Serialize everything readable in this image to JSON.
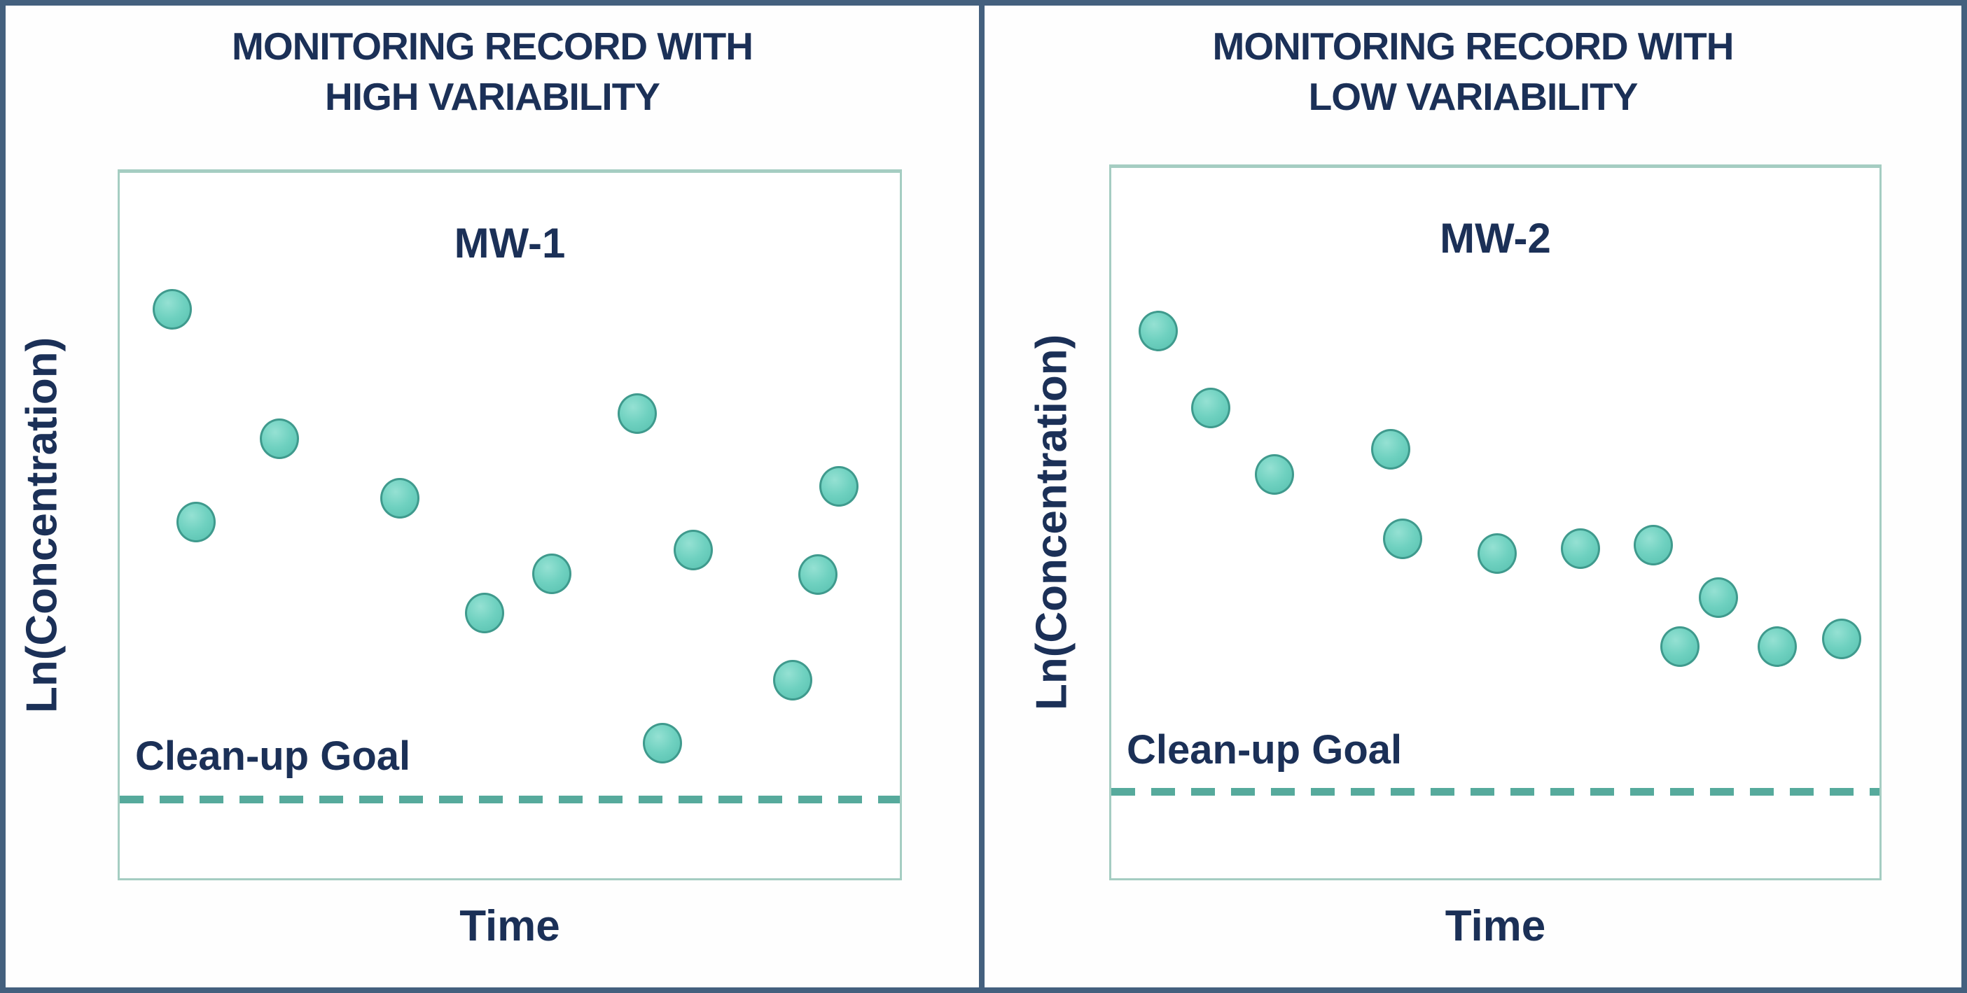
{
  "figure": {
    "colors": {
      "frame_border": "#44607e",
      "plot_box_border": "#a5cdc2",
      "point_fill": "#6fd1c0",
      "point_stroke": "#3f9a8d",
      "dashed_goal_line": "#56aa9c",
      "text_navy": "#1b3057",
      "background": "#ffffff"
    },
    "panels": [
      {
        "title_line1": "MONITORING RECORD WITH",
        "title_line2": "HIGH VARIABILITY",
        "well_label": "MW-1",
        "y_axis_label": "Ln(Concentration)",
        "x_axis_label": "Time",
        "goal_label": "Clean-up Goal"
      },
      {
        "title_line1": "MONITORING RECORD WITH",
        "title_line2": "LOW VARIABILITY",
        "well_label": "MW-2",
        "y_axis_label": "Ln(Concentration)",
        "x_axis_label": "Time",
        "goal_label": "Clean-up Goal"
      }
    ]
  },
  "chart_data": [
    {
      "type": "scatter",
      "title": "MONITORING RECORD WITH HIGH VARIABILITY",
      "series_label": "MW-1",
      "xlabel": "Time",
      "ylabel": "Ln(Concentration)",
      "x_axis_ticks": "none",
      "y_axis_ticks": "none",
      "grid": false,
      "legend": "none",
      "x": [
        1,
        2,
        3,
        4,
        5,
        6,
        7,
        8,
        9,
        10,
        11,
        12
      ],
      "y_relative": [
        0.81,
        0.5,
        0.62,
        0.54,
        0.38,
        0.43,
        0.66,
        0.19,
        0.47,
        0.28,
        0.43,
        0.56
      ],
      "cleanup_goal_relative": 0.12,
      "cleanup_goal_frac": 0.883,
      "annotation": "Clean-up Goal",
      "points_frac": [
        {
          "x": 0.067,
          "y": 0.193
        },
        {
          "x": 0.098,
          "y": 0.495
        },
        {
          "x": 0.205,
          "y": 0.377
        },
        {
          "x": 0.359,
          "y": 0.461
        },
        {
          "x": 0.468,
          "y": 0.624
        },
        {
          "x": 0.554,
          "y": 0.568
        },
        {
          "x": 0.663,
          "y": 0.341
        },
        {
          "x": 0.696,
          "y": 0.809
        },
        {
          "x": 0.735,
          "y": 0.535
        },
        {
          "x": 0.863,
          "y": 0.719
        },
        {
          "x": 0.895,
          "y": 0.569
        },
        {
          "x": 0.922,
          "y": 0.444
        }
      ]
    },
    {
      "type": "scatter",
      "title": "MONITORING RECORD WITH LOW VARIABILITY",
      "series_label": "MW-2",
      "xlabel": "Time",
      "ylabel": "Ln(Concentration)",
      "x_axis_ticks": "none",
      "y_axis_ticks": "none",
      "grid": false,
      "legend": "none",
      "x": [
        1,
        2,
        3,
        4,
        5,
        6,
        7,
        8,
        9,
        10,
        11,
        12
      ],
      "y_relative": [
        0.77,
        0.66,
        0.57,
        0.6,
        0.48,
        0.46,
        0.46,
        0.47,
        0.33,
        0.4,
        0.33,
        0.34
      ],
      "cleanup_goal_relative": 0.13,
      "cleanup_goal_frac": 0.873,
      "annotation": "Clean-up Goal",
      "points_frac": [
        {
          "x": 0.061,
          "y": 0.23
        },
        {
          "x": 0.129,
          "y": 0.338
        },
        {
          "x": 0.212,
          "y": 0.432
        },
        {
          "x": 0.364,
          "y": 0.396
        },
        {
          "x": 0.379,
          "y": 0.522
        },
        {
          "x": 0.502,
          "y": 0.543
        },
        {
          "x": 0.611,
          "y": 0.536
        },
        {
          "x": 0.706,
          "y": 0.531
        },
        {
          "x": 0.74,
          "y": 0.674
        },
        {
          "x": 0.79,
          "y": 0.605
        },
        {
          "x": 0.867,
          "y": 0.674
        },
        {
          "x": 0.951,
          "y": 0.663
        }
      ]
    }
  ]
}
